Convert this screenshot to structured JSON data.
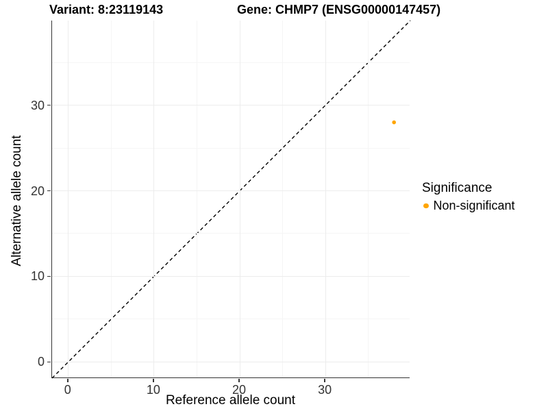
{
  "titles": {
    "variant": "Variant: 8:23119143",
    "gene": "Gene: CHMP7 (ENSG00000147457)"
  },
  "axes": {
    "x": {
      "label": "Reference allele count",
      "tick_labels": [
        "0",
        "10",
        "20",
        "30"
      ]
    },
    "y": {
      "label": "Alternative allele count",
      "tick_labels": [
        "0",
        "10",
        "20",
        "30"
      ]
    }
  },
  "legend": {
    "title": "Significance",
    "items": [
      {
        "label": "Non-significant",
        "color": "#FFA500"
      }
    ]
  },
  "colors": {
    "background": "#ffffff",
    "axis_line": "#333333",
    "tick_label": "#333333",
    "major_grid": "#ececec",
    "minor_grid": "#f5f5f5",
    "identity_line": "#000000",
    "point": "#FFA500"
  },
  "chart_data": {
    "type": "scatter",
    "title": "Variant: 8:23119143 | Gene: CHMP7 (ENSG00000147457)",
    "xlabel": "Reference allele count",
    "ylabel": "Alternative allele count",
    "xlim": [
      -1.9,
      39.9
    ],
    "ylim": [
      -1.9,
      39.9
    ],
    "x_ticks": [
      0,
      10,
      20,
      30
    ],
    "y_ticks": [
      0,
      10,
      20,
      30
    ],
    "x_minor_ticks": [
      5,
      15,
      25,
      35
    ],
    "y_minor_ticks": [
      5,
      15,
      25,
      35
    ],
    "grid": true,
    "legend_position": "right",
    "series": [
      {
        "name": "Non-significant",
        "color": "#FFA500",
        "points": [
          {
            "x": 38,
            "y": 28
          }
        ]
      }
    ],
    "identity_line": {
      "slope": 1,
      "intercept": 0,
      "style": "dashed",
      "color": "#000000"
    }
  }
}
